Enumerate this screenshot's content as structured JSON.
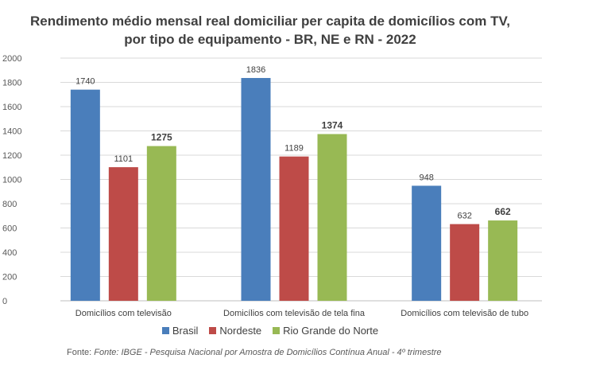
{
  "chart_data": {
    "type": "bar",
    "title_lines": [
      "Rendimento médio mensal real domiciliar per capita  de domicílios com TV,",
      "por tipo de equipamento - BR, NE e RN - 2022"
    ],
    "categories": [
      "Domicílios com televisão",
      "Domicílios com televisão de tela fina",
      "Domicílios com televisão de tubo"
    ],
    "series": [
      {
        "name": "Brasil",
        "color": "#4a7ebb",
        "values": [
          1740,
          1836,
          948
        ]
      },
      {
        "name": "Nordeste",
        "color": "#be4b48",
        "values": [
          1101,
          1189,
          632
        ]
      },
      {
        "name": "Rio Grande do Norte",
        "color": "#98b954",
        "values": [
          1275,
          1374,
          662
        ],
        "bold_labels": true
      }
    ],
    "ylim": [
      0,
      2000
    ],
    "yticks": [
      0,
      200,
      400,
      600,
      800,
      1000,
      1200,
      1400,
      1600,
      1800,
      2000
    ],
    "grid": true,
    "legend": "bottom",
    "xlabel": "",
    "ylabel": ""
  },
  "source": {
    "prefix": "Fonte: ",
    "text": "Fonte: IBGE - Pesquisa Nacional por Amostra de Domicílios Contínua Anual - 4º trimestre"
  }
}
